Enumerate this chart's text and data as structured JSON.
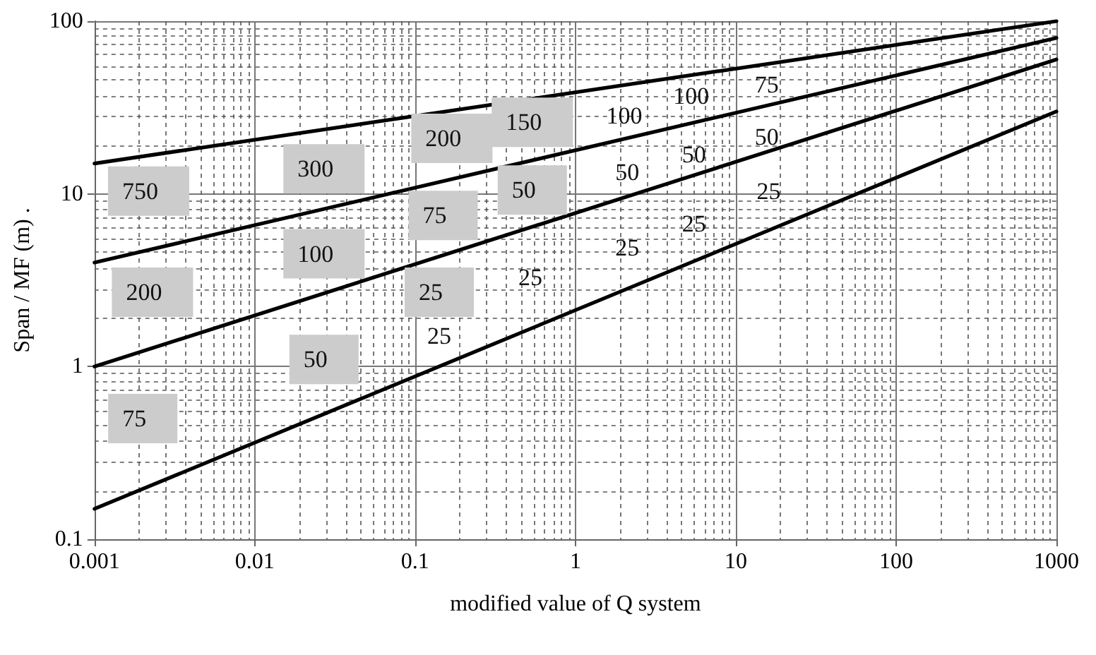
{
  "chart_data": {
    "type": "line",
    "xlabel": "modified value of Q system",
    "ylabel": "Span / MF (m) .",
    "log": "xy",
    "grid": true,
    "marker": "none",
    "line_style": "solid",
    "xlim": [
      0.001,
      1000
    ],
    "xticks": [
      0.001,
      0.01,
      0.1,
      1,
      10,
      100,
      1000
    ],
    "ylim": [
      0.1,
      100
    ],
    "yticks": [
      0.1,
      1,
      10,
      100
    ],
    "x": [
      0.001,
      1000
    ],
    "series": [
      {
        "color": "#000000",
        "values": [
          15,
          100
        ]
      },
      {
        "color": "#000000",
        "values": [
          4,
          80
        ]
      },
      {
        "color": "#000000",
        "values": [
          1,
          60
        ]
      },
      {
        "color": "#000000",
        "values": [
          0.15,
          30
        ]
      }
    ],
    "annotations": [
      "750",
      "200",
      "75",
      "300",
      "100",
      "50",
      "200",
      "75",
      "25",
      "150",
      "50",
      "25",
      "25",
      "100",
      "100",
      "75",
      "50",
      "50",
      "50",
      "25",
      "25",
      "25"
    ]
  }
}
